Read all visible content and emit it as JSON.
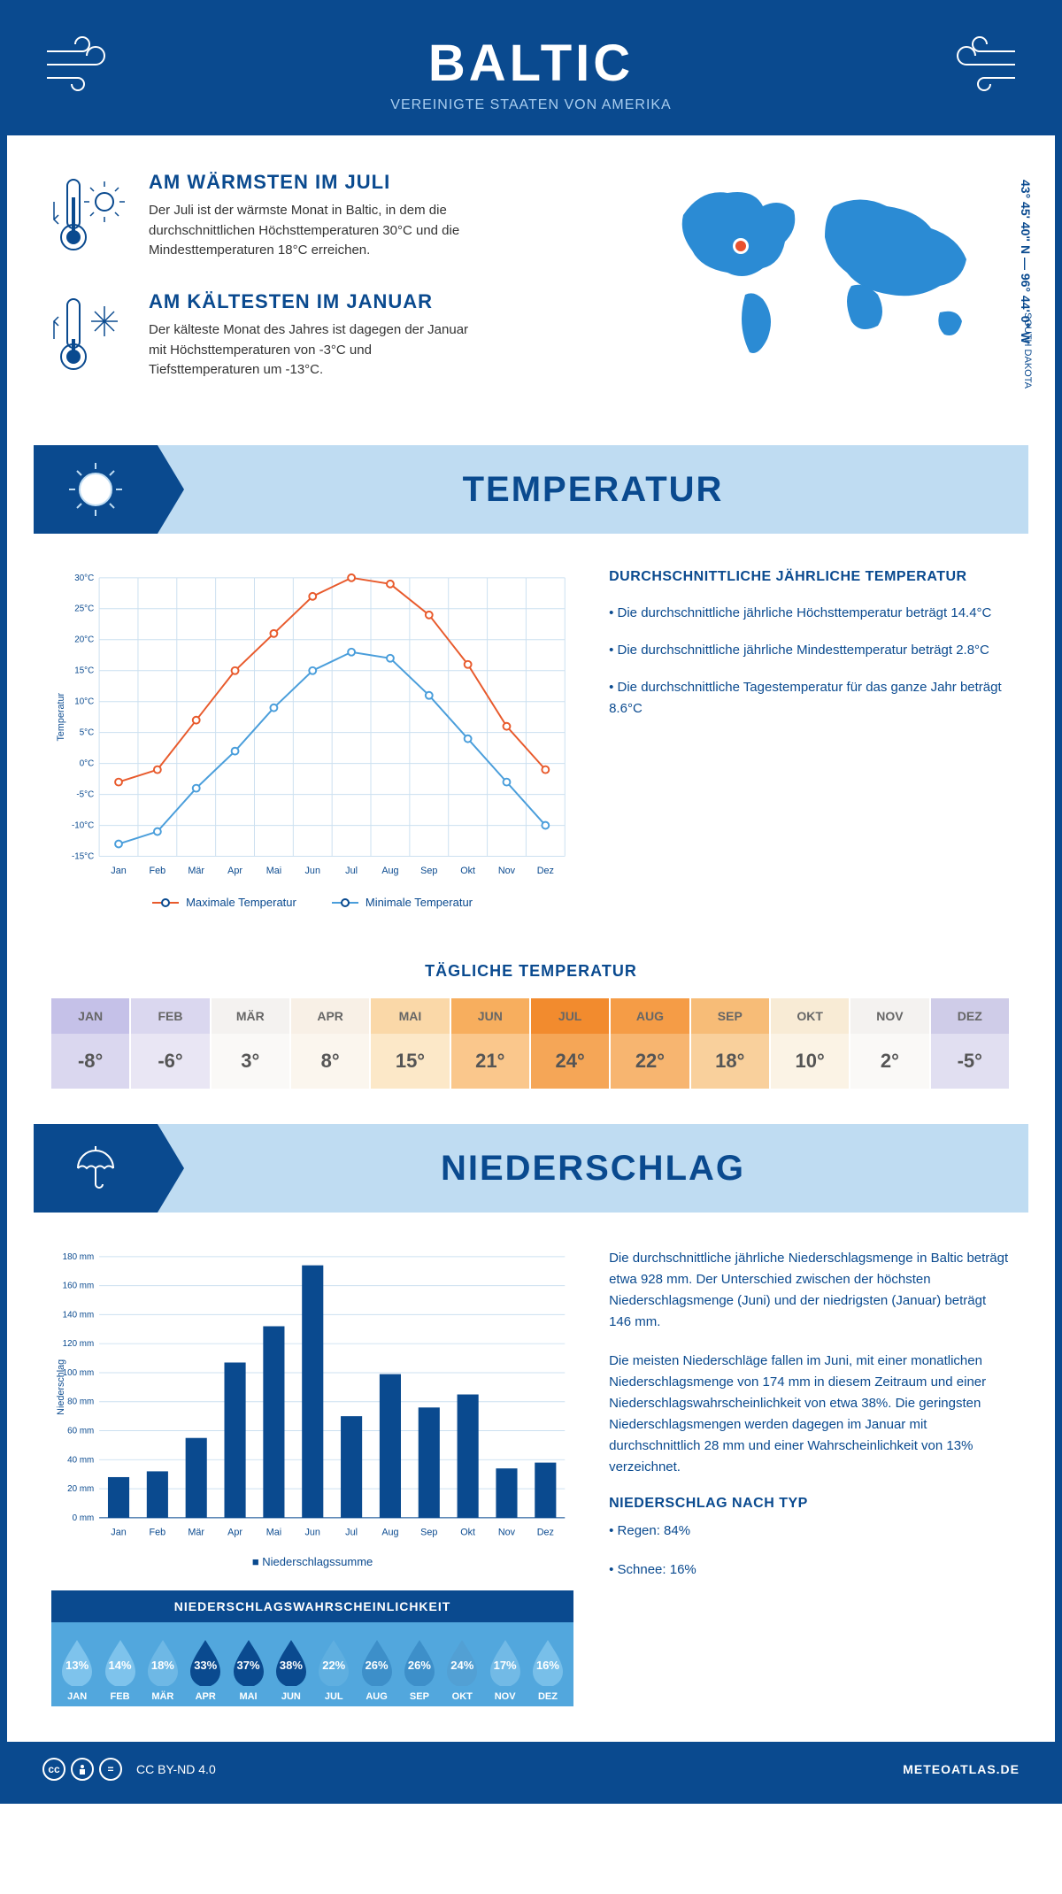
{
  "header": {
    "title": "BALTIC",
    "subtitle": "VEREINIGTE STAATEN VON AMERIKA"
  },
  "location": {
    "coords": "43° 45' 40\" N — 96° 44' 0\" W",
    "state": "SOUTH DAKOTA"
  },
  "warmest": {
    "title": "AM WÄRMSTEN IM JULI",
    "text": "Der Juli ist der wärmste Monat in Baltic, in dem die durchschnittlichen Höchsttemperaturen 30°C und die Mindesttemperaturen 18°C erreichen."
  },
  "coldest": {
    "title": "AM KÄLTESTEN IM JANUAR",
    "text": "Der kälteste Monat des Jahres ist dagegen der Januar mit Höchsttemperaturen von -3°C und Tiefsttemperaturen um -13°C."
  },
  "sections": {
    "temperature": "TEMPERATUR",
    "precipitation": "NIEDERSCHLAG"
  },
  "months": [
    "Jan",
    "Feb",
    "Mär",
    "Apr",
    "Mai",
    "Jun",
    "Jul",
    "Aug",
    "Sep",
    "Okt",
    "Nov",
    "Dez"
  ],
  "months_upper": [
    "JAN",
    "FEB",
    "MÄR",
    "APR",
    "MAI",
    "JUN",
    "JUL",
    "AUG",
    "SEP",
    "OKT",
    "NOV",
    "DEZ"
  ],
  "temp_chart": {
    "ylabel": "Temperatur",
    "ymin": -15,
    "ymax": 30,
    "ytick_step": 5,
    "max_series": [
      -3,
      -1,
      7,
      15,
      21,
      27,
      30,
      29,
      24,
      16,
      6,
      -1
    ],
    "min_series": [
      -13,
      -11,
      -4,
      2,
      9,
      15,
      18,
      17,
      11,
      4,
      -3,
      -10
    ],
    "max_color": "#e85a2c",
    "min_color": "#4a9edb",
    "grid_color": "#cce0f0",
    "legend_max": "Maximale Temperatur",
    "legend_min": "Minimale Temperatur"
  },
  "temp_info": {
    "title": "DURCHSCHNITTLICHE JÄHRLICHE TEMPERATUR",
    "p1": "• Die durchschnittliche jährliche Höchsttemperatur beträgt 14.4°C",
    "p2": "• Die durchschnittliche jährliche Mindesttemperatur beträgt 2.8°C",
    "p3": "• Die durchschnittliche Tagestemperatur für das ganze Jahr beträgt 8.6°C"
  },
  "daily_temp": {
    "title": "TÄGLICHE TEMPERATUR",
    "values": [
      "-8°",
      "-6°",
      "3°",
      "8°",
      "15°",
      "21°",
      "24°",
      "22°",
      "18°",
      "10°",
      "2°",
      "-5°"
    ],
    "header_colors": [
      "#c5c1e8",
      "#dad7ef",
      "#f4f2f0",
      "#f8f0e6",
      "#fad8a8",
      "#f7ae5e",
      "#f28b2e",
      "#f59c46",
      "#f7bc77",
      "#f8ebd5",
      "#f4f2f0",
      "#cfcce8"
    ],
    "value_colors": [
      "#dad7ef",
      "#e9e6f4",
      "#faf9f7",
      "#fbf6ee",
      "#fce8c8",
      "#fac78c",
      "#f5a657",
      "#f7b570",
      "#f9d09c",
      "#fbf3e5",
      "#faf9f7",
      "#e1dff1"
    ]
  },
  "precip_chart": {
    "ylabel": "Niederschlag",
    "ymax": 180,
    "ytick_step": 20,
    "values": [
      28,
      32,
      55,
      107,
      132,
      174,
      70,
      99,
      76,
      85,
      34,
      38
    ],
    "bar_color": "#0a4a8f",
    "grid_color": "#cce0f0",
    "legend": "Niederschlagssumme"
  },
  "precip_text": {
    "p1": "Die durchschnittliche jährliche Niederschlagsmenge in Baltic beträgt etwa 928 mm. Der Unterschied zwischen der höchsten Niederschlagsmenge (Juni) und der niedrigsten (Januar) beträgt 146 mm.",
    "p2": "Die meisten Niederschläge fallen im Juni, mit einer monatlichen Niederschlagsmenge von 174 mm in diesem Zeitraum und einer Niederschlagswahrscheinlichkeit von etwa 38%. Die geringsten Niederschlagsmengen werden dagegen im Januar mit durchschnittlich 28 mm und einer Wahrscheinlichkeit von 13% verzeichnet.",
    "type_title": "NIEDERSCHLAG NACH TYP",
    "type1": "• Regen: 84%",
    "type2": "• Schnee: 16%"
  },
  "probability": {
    "title": "NIEDERSCHLAGSWAHRSCHEINLICHKEIT",
    "values": [
      "13%",
      "14%",
      "18%",
      "33%",
      "37%",
      "38%",
      "22%",
      "26%",
      "26%",
      "24%",
      "17%",
      "16%"
    ],
    "colors": [
      "#7ec3ec",
      "#7ec3ec",
      "#6eb8e5",
      "#0a4a8f",
      "#0a4a8f",
      "#0a4a8f",
      "#5fafe0",
      "#3d8fc9",
      "#3d8fc9",
      "#52a0d4",
      "#72bae6",
      "#78bfe9"
    ]
  },
  "footer": {
    "license": "CC BY-ND 4.0",
    "site": "METEOATLAS.DE"
  }
}
